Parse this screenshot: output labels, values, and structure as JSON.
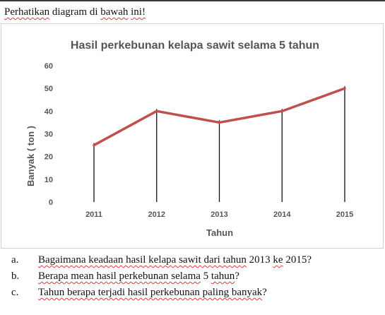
{
  "intro": {
    "words": [
      "Perhatikan",
      "diagram",
      "di",
      "bawah",
      "ini!"
    ]
  },
  "chart_data": {
    "type": "line",
    "title": "Hasil perkebunan kelapa sawit selama 5 tahun",
    "xlabel": "Tahun",
    "ylabel": "Banyak ( ton )",
    "categories": [
      "2011",
      "2012",
      "2013",
      "2014",
      "2015"
    ],
    "series": [
      {
        "values": [
          25,
          40,
          35,
          40,
          50
        ],
        "color": "#c0504d"
      }
    ],
    "ylim": [
      0,
      60
    ],
    "yticks": [
      "0",
      "10",
      "20",
      "30",
      "40",
      "50",
      "60"
    ],
    "grid": false,
    "drop_lines": true,
    "legend": "none"
  },
  "questions": [
    {
      "marker": "a.",
      "text": "Bagaimana keadaan hasil kelapa sawit dari tahun 2013 ke 2015?"
    },
    {
      "marker": "b.",
      "text": "Berapa mean hasil perkebunan selama 5 tahun?"
    },
    {
      "marker": "c.",
      "text": "Tahun berapa terjadi hasil perkebunan paling banyak?"
    }
  ]
}
